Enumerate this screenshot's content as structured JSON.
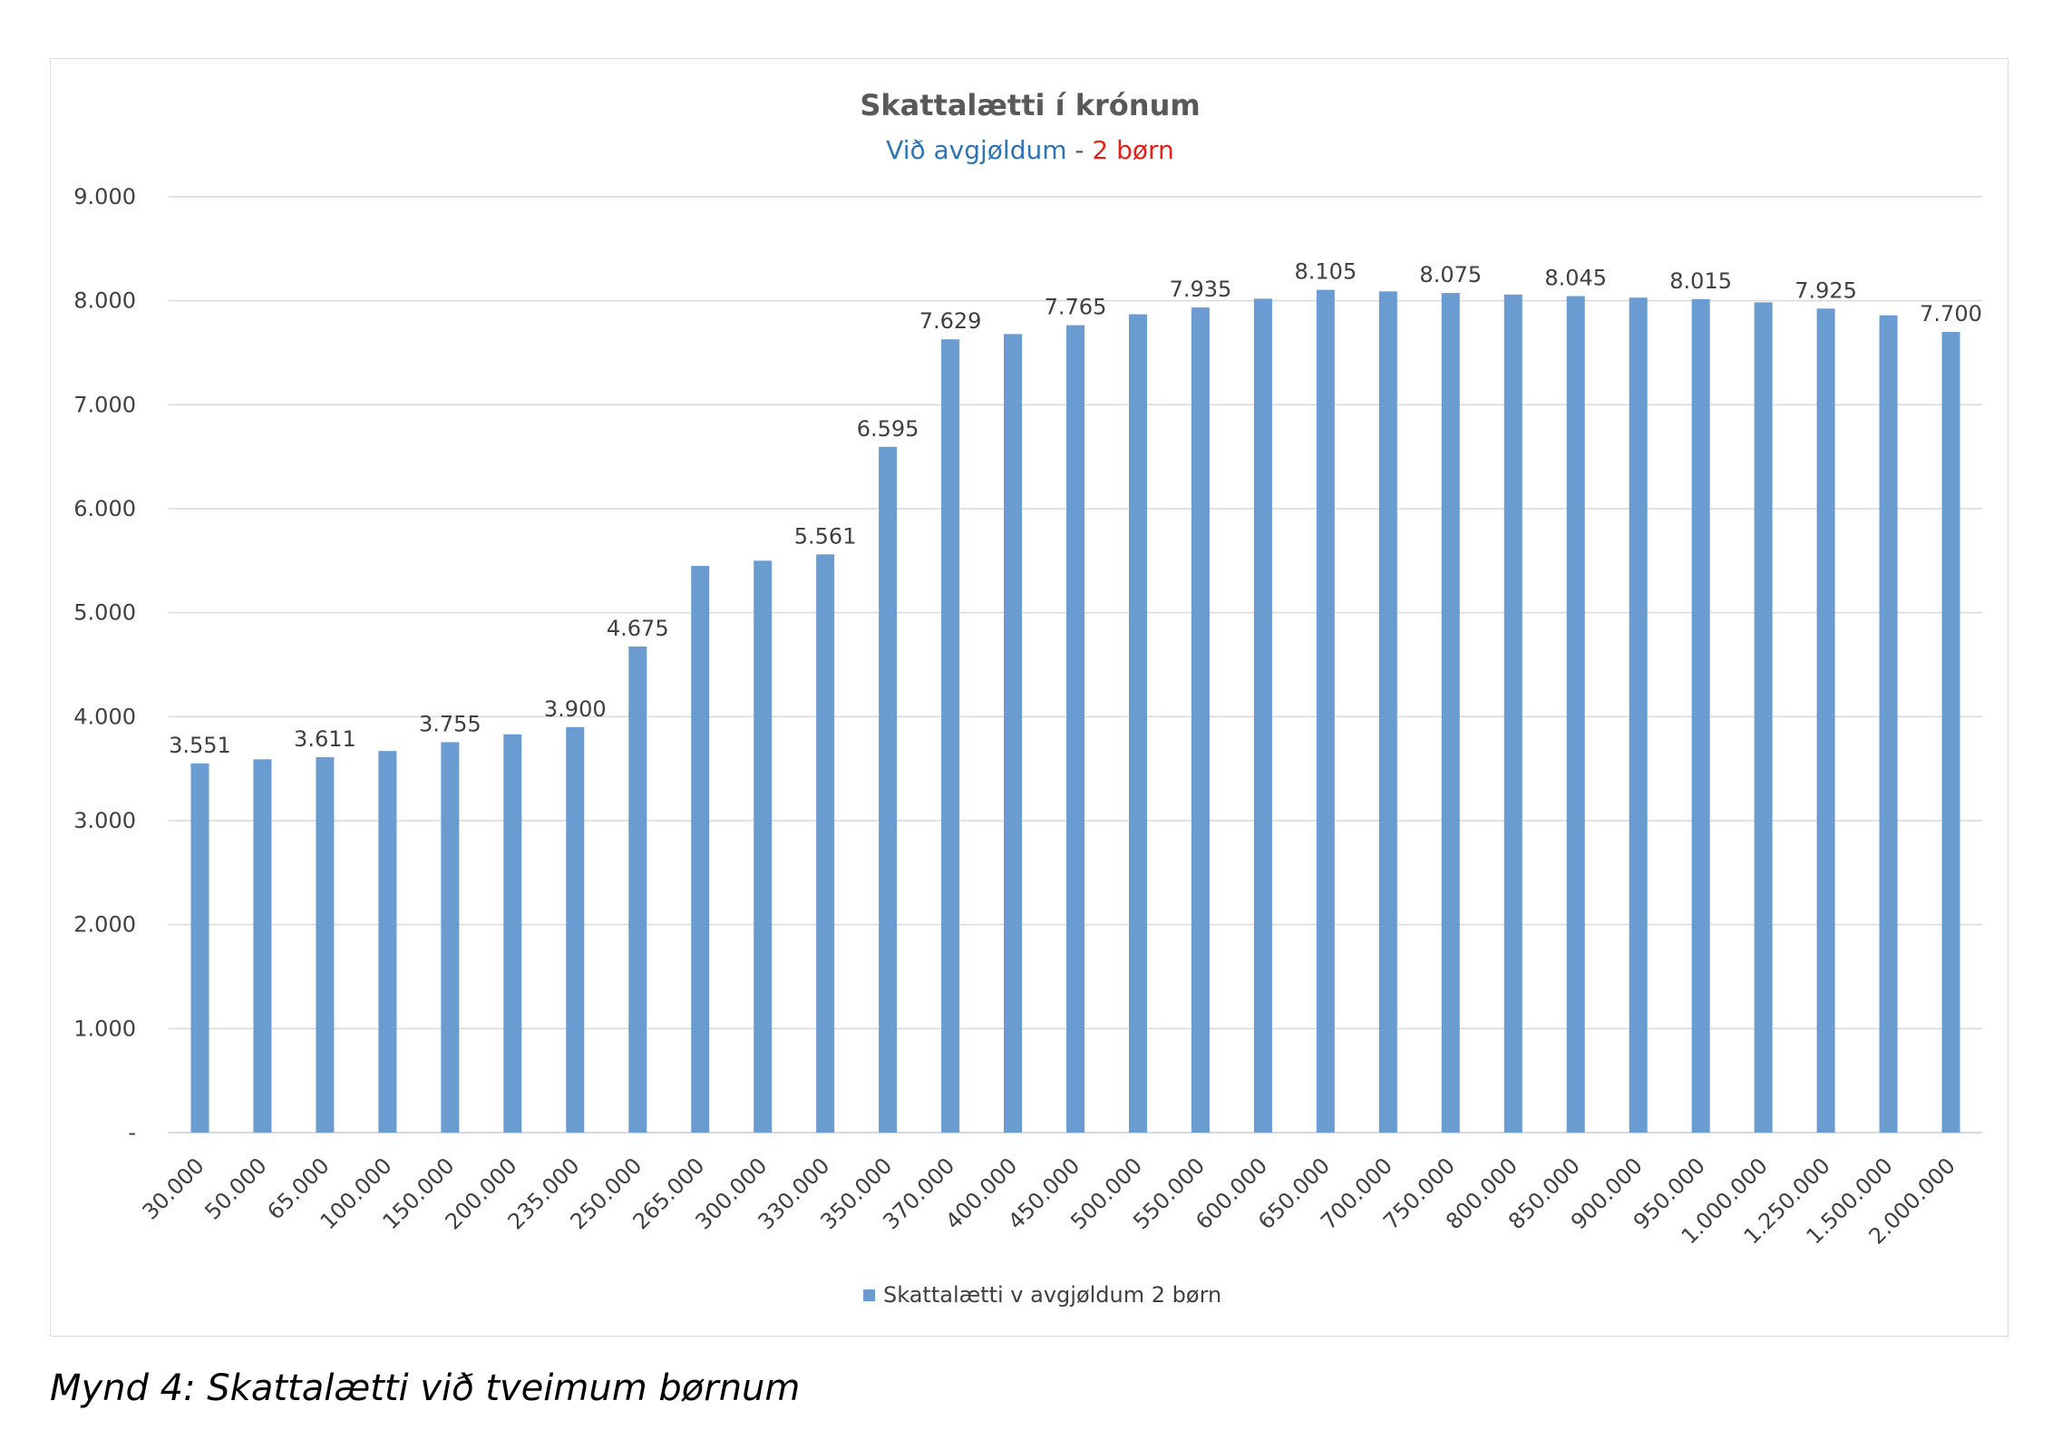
{
  "chart_data": {
    "type": "bar",
    "title": "Skattalætti í krónum",
    "subtitle_part1": "Við avgjøldum",
    "subtitle_sep": " - ",
    "subtitle_part2": "2 børn",
    "categories": [
      "30.000",
      "50.000",
      "65.000",
      "100.000",
      "150.000",
      "200.000",
      "235.000",
      "250.000",
      "265.000",
      "300.000",
      "330.000",
      "350.000",
      "370.000",
      "400.000",
      "450.000",
      "500.000",
      "550.000",
      "600.000",
      "650.000",
      "700.000",
      "750.000",
      "800.000",
      "850.000",
      "900.000",
      "950.000",
      "1.000.000",
      "1.250.000",
      "1.500.000",
      "2.000.000"
    ],
    "series": [
      {
        "name": "Skattalætti v avgjøldum 2 børn",
        "values": [
          3551,
          3590,
          3611,
          3670,
          3755,
          3830,
          3900,
          4675,
          5450,
          5500,
          5561,
          6595,
          7629,
          7680,
          7765,
          7870,
          7935,
          8020,
          8105,
          8090,
          8075,
          8060,
          8045,
          8030,
          8015,
          7985,
          7925,
          7860,
          7700
        ]
      }
    ],
    "labeled_indices": [
      0,
      2,
      4,
      6,
      7,
      10,
      11,
      12,
      14,
      16,
      18,
      20,
      22,
      24,
      26,
      28
    ],
    "data_labels": [
      "3.551",
      "3.611",
      "3.755",
      "3.900",
      "4.675",
      "5.561",
      "6.595",
      "7.629",
      "7.765",
      "7.935",
      "8.105",
      "8.075",
      "8.045",
      "8.015",
      "7.925",
      "7.700"
    ],
    "y_ticks": [
      "-",
      "1.000",
      "2.000",
      "3.000",
      "4.000",
      "5.000",
      "6.000",
      "7.000",
      "8.000",
      "9.000"
    ],
    "ylim": [
      0,
      9000
    ],
    "grid": true,
    "legend_position": "bottom",
    "colors": {
      "bar": "#6A9BD1",
      "subtitle_part1": "#2E74B5",
      "subtitle_part2": "#E32119",
      "title": "#595959",
      "grid": "#d9d9d9"
    }
  },
  "caption": "Mynd 4: Skattalætti við tveimum børnum"
}
